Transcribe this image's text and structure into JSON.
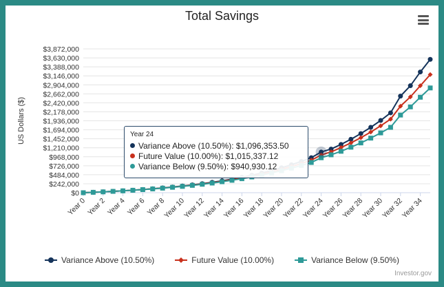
{
  "chart_title": "Total Savings",
  "menu_icon": "hamburger-menu-icon",
  "chart_data": {
    "type": "line",
    "title": "Total Savings",
    "xlabel": "",
    "ylabel": "US Dollars ($)",
    "y_ticks": [
      "$0",
      "$242,000",
      "$484,000",
      "$726,000",
      "$968,000",
      "$1,210,000",
      "$1,452,000",
      "$1,694,000",
      "$1,936,000",
      "$2,178,000",
      "$2,420,000",
      "$2,662,000",
      "$2,904,000",
      "$3,146,000",
      "$3,388,000",
      "$3,630,000",
      "$3,872,000"
    ],
    "ylim": [
      0,
      3872000
    ],
    "x_ticks": [
      "Year 0",
      "Year 2",
      "Year 4",
      "Year 6",
      "Year 8",
      "Year 10",
      "Year 12",
      "Year 14",
      "Year 16",
      "Year 18",
      "Year 20",
      "Year 22",
      "Year 24",
      "Year 26",
      "Year 28",
      "Year 30",
      "Year 32",
      "Year 34"
    ],
    "x": [
      0,
      1,
      2,
      3,
      4,
      5,
      6,
      7,
      8,
      9,
      10,
      11,
      12,
      13,
      14,
      15,
      16,
      17,
      18,
      19,
      20,
      21,
      22,
      23,
      24,
      25,
      26,
      27,
      28,
      29,
      30,
      31,
      32,
      33,
      34,
      35
    ],
    "xlim": [
      0,
      35
    ],
    "series": [
      {
        "name": "Variance Above (10.50%)",
        "color": "#14335a",
        "marker": "circle",
        "values": [
          0,
          11050,
          23260,
          36750,
          51670,
          68150,
          86370,
          106500,
          128700,
          153300,
          180500,
          210500,
          243700,
          280400,
          320900,
          365700,
          415200,
          469900,
          530400,
          597200,
          671000,
          752600,
          842800,
          942400,
          1096354,
          1175000,
          1300000,
          1439000,
          1592000,
          1760000,
          1945000,
          2150000,
          2600000,
          2880000,
          3250000,
          3590000
        ]
      },
      {
        "name": "Future Value (10.00%)",
        "color": "#c8301c",
        "marker": "diamond",
        "values": [
          0,
          11000,
          23100,
          36410,
          51050,
          67160,
          84870,
          104360,
          125800,
          149380,
          175320,
          203850,
          235240,
          269760,
          307740,
          349510,
          395460,
          446000,
          501600,
          562760,
          630040,
          704040,
          785440,
          874990,
          1015337,
          1100000,
          1215000,
          1342000,
          1480000,
          1633000,
          1800000,
          1980000,
          2330000,
          2580000,
          2880000,
          3180000
        ]
      },
      {
        "name": "Variance Below (9.50%)",
        "color": "#2e9a98",
        "marker": "square",
        "values": [
          0,
          10950,
          22940,
          36070,
          50450,
          66200,
          83440,
          102320,
          122990,
          145630,
          170420,
          197560,
          227270,
          259820,
          295460,
          334480,
          377210,
          424000,
          475230,
          531330,
          592760,
          660020,
          733680,
          814330,
          940930,
          1020000,
          1115000,
          1225000,
          1340000,
          1470000,
          1610000,
          1760000,
          2090000,
          2310000,
          2570000,
          2820000
        ]
      }
    ],
    "grid": true,
    "legend_position": "bottom"
  },
  "tooltip": {
    "header": "Year 24",
    "rows": [
      {
        "label": "Variance Above (10.50%): $1,096,353.50",
        "color": "#14335a"
      },
      {
        "label": "Future Value (10.00%): $1,015,337.12",
        "color": "#c8301c"
      },
      {
        "label": "Variance Below (9.50%): $940,930.12",
        "color": "#2e9a98"
      }
    ]
  },
  "legend": [
    {
      "label": "Variance Above (10.50%)",
      "color": "#14335a",
      "marker": "circle"
    },
    {
      "label": "Future Value (10.00%)",
      "color": "#c8301c",
      "marker": "diamond"
    },
    {
      "label": "Variance Below (9.50%)",
      "color": "#2e9a98",
      "marker": "square"
    }
  ],
  "credit": "Investor.gov"
}
